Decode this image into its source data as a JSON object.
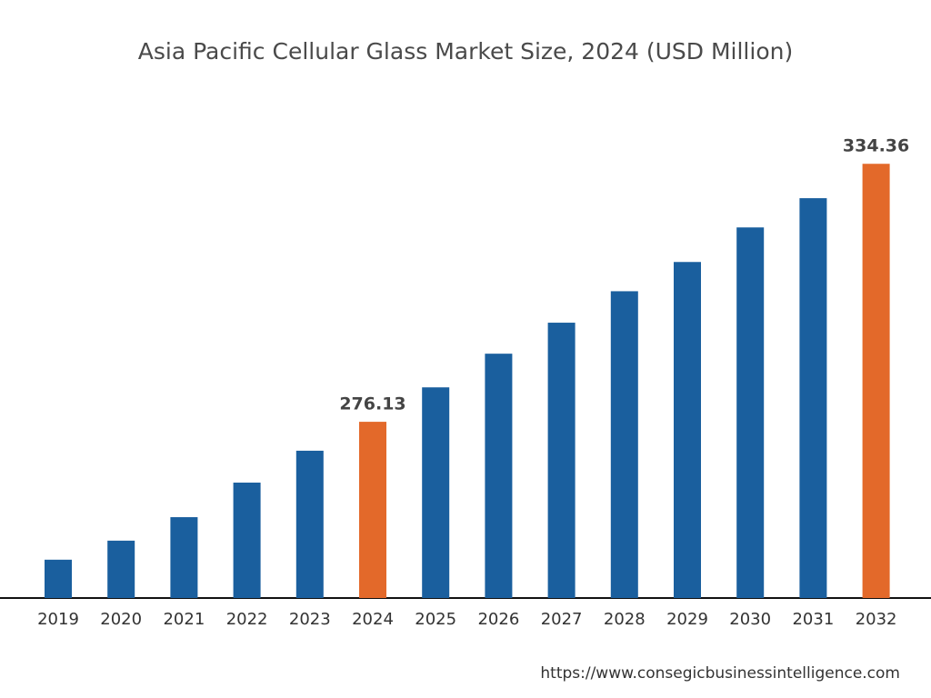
{
  "chart_data": {
    "type": "bar",
    "title": "Asia Pacific Cellular Glass Market Size, 2024 (USD Million)",
    "categories": [
      "2019",
      "2020",
      "2021",
      "2022",
      "2023",
      "2024",
      "2025",
      "2026",
      "2027",
      "2028",
      "2029",
      "2030",
      "2031",
      "2032"
    ],
    "values": [
      245.0,
      249.3,
      254.6,
      262.4,
      269.6,
      276.13,
      283.9,
      291.5,
      298.5,
      305.6,
      312.2,
      320.0,
      326.6,
      334.36
    ],
    "color": "#1a5f9e",
    "colors": [
      "#1a5f9e",
      "#1a5f9e",
      "#1a5f9e",
      "#1a5f9e",
      "#1a5f9e",
      "#e3692a",
      "#1a5f9e",
      "#1a5f9e",
      "#1a5f9e",
      "#1a5f9e",
      "#1a5f9e",
      "#1a5f9e",
      "#1a5f9e",
      "#e3692a"
    ],
    "ylim": [
      236.35,
      350
    ],
    "source": "https://www.consegicbusinessintelligence.com"
  }
}
